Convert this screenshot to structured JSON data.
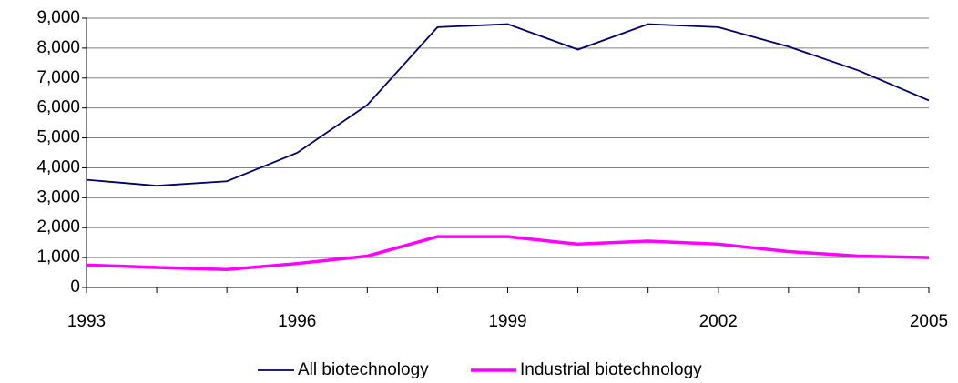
{
  "chart_data": {
    "type": "line",
    "x": [
      1993,
      1994,
      1995,
      1996,
      1997,
      1998,
      1999,
      2000,
      2001,
      2002,
      2003,
      2004,
      2005
    ],
    "series": [
      {
        "name": "All biotechnology",
        "color": "#000066",
        "values": [
          3600,
          3400,
          3550,
          4500,
          6100,
          8700,
          8800,
          7950,
          8800,
          8700,
          8050,
          7250,
          6250
        ]
      },
      {
        "name": "Industrial biotechnology",
        "color": "#ff00ff",
        "values": [
          750,
          670,
          600,
          800,
          1050,
          1700,
          1700,
          1450,
          1550,
          1450,
          1200,
          1050,
          1000
        ]
      }
    ],
    "xlim": [
      1993,
      2005
    ],
    "xticks": [
      1993,
      1996,
      1999,
      2002,
      2005
    ],
    "ylim": [
      0,
      9000
    ],
    "yticks": [
      0,
      {
        "value": 1000,
        "label": "1,000"
      },
      {
        "value": 2000,
        "label": "2,000"
      },
      {
        "value": 3000,
        "label": "3,000"
      },
      {
        "value": 4000,
        "label": "4,000"
      },
      {
        "value": 5000,
        "label": "5,000"
      },
      {
        "value": 6000,
        "label": "6,000"
      },
      {
        "value": 7000,
        "label": "7,000"
      },
      {
        "value": 8000,
        "label": "8,000"
      },
      {
        "value": 9000,
        "label": "9,000"
      }
    ],
    "grid": true,
    "legend": "bottom"
  }
}
